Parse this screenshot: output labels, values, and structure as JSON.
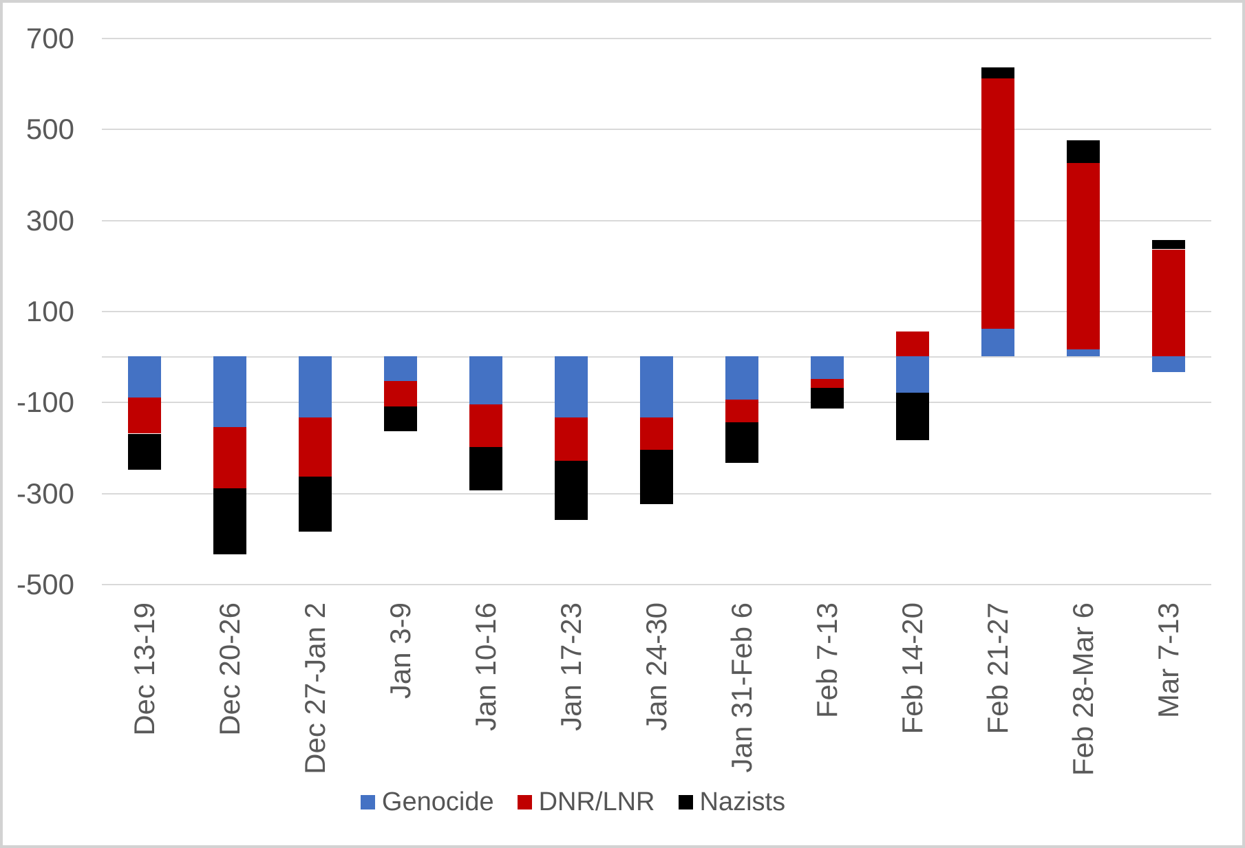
{
  "chart_data": {
    "type": "bar",
    "stacked": true,
    "title": "",
    "xlabel": "",
    "ylabel": "",
    "categories": [
      "Dec 13-19",
      "Dec 20-26",
      "Dec 27-Jan 2",
      "Jan 3-9",
      "Jan 10-16",
      "Jan 17-23",
      "Jan 24-30",
      "Jan 31-Feb 6",
      "Feb 7-13",
      "Feb 14-20",
      "Feb 21-27",
      "Feb 28-Mar 6",
      "Mar 7-13"
    ],
    "series": [
      {
        "name": "Genocide",
        "color": "#4472C4",
        "values": [
          -90,
          -155,
          -135,
          -55,
          -105,
          -135,
          -135,
          -95,
          -50,
          -80,
          60,
          15,
          -35
        ]
      },
      {
        "name": "DNR/LNR",
        "color": "#C00000",
        "values": [
          -80,
          -135,
          -130,
          -55,
          -95,
          -95,
          -70,
          -50,
          -20,
          55,
          550,
          410,
          235
        ]
      },
      {
        "name": "Nazists",
        "color": "#000000",
        "values": [
          -80,
          -145,
          -120,
          -55,
          -95,
          -130,
          -120,
          -90,
          -45,
          -105,
          25,
          50,
          20
        ]
      }
    ],
    "ylim": [
      -500,
      700
    ],
    "yticks": [
      700,
      500,
      300,
      100,
      -100,
      -300,
      -500
    ],
    "grid": true,
    "legend_position": "bottom",
    "gridline_color": "#D9D9D9",
    "axis_label_color": "#595959",
    "background": "#FFFFFF"
  }
}
